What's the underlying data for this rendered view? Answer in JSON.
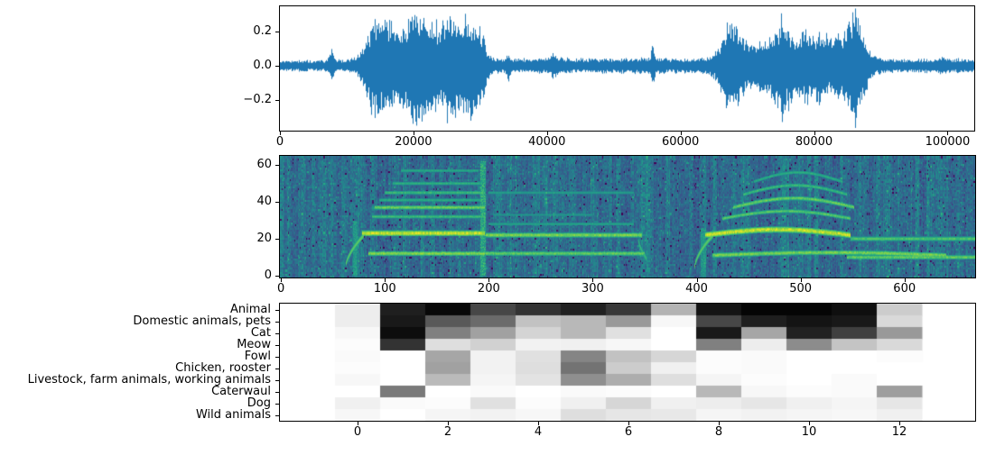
{
  "figure": {
    "background": "#ffffff",
    "frame_color": "#000000",
    "text_color": "#000000"
  },
  "chart_data": [
    {
      "id": "waveform",
      "type": "line",
      "title": "",
      "xlabel": "",
      "ylabel": "",
      "series_color": "#1f77b4",
      "xlim": [
        0,
        104000
      ],
      "ylim": [
        -0.379,
        0.347
      ],
      "xticks": [
        "0",
        "20000",
        "40000",
        "60000",
        "80000",
        "100000"
      ],
      "xtick_values": [
        0,
        20000,
        40000,
        60000,
        80000,
        100000
      ],
      "yticks": [
        "−0.2",
        "0.0",
        "0.2"
      ],
      "ytick_values": [
        -0.2,
        0.0,
        0.2
      ],
      "grid": false,
      "envelope": [
        [
          0,
          0.028
        ],
        [
          3000,
          0.032
        ],
        [
          6000,
          0.03
        ],
        [
          7000,
          0.033
        ],
        [
          7800,
          0.1
        ],
        [
          8400,
          0.033
        ],
        [
          10000,
          0.035
        ],
        [
          11500,
          0.05
        ],
        [
          12300,
          0.1
        ],
        [
          13000,
          0.17
        ],
        [
          14000,
          0.28
        ],
        [
          15000,
          0.24
        ],
        [
          16000,
          0.27
        ],
        [
          17000,
          0.22
        ],
        [
          18000,
          0.24
        ],
        [
          19000,
          0.26
        ],
        [
          20000,
          0.33
        ],
        [
          21000,
          0.28
        ],
        [
          22000,
          0.31
        ],
        [
          23000,
          0.26
        ],
        [
          24000,
          0.24
        ],
        [
          25000,
          0.27
        ],
        [
          26000,
          0.3
        ],
        [
          27000,
          0.26
        ],
        [
          28000,
          0.28
        ],
        [
          29000,
          0.31
        ],
        [
          29800,
          0.27
        ],
        [
          30500,
          0.18
        ],
        [
          31200,
          0.08
        ],
        [
          32000,
          0.045
        ],
        [
          33800,
          0.04
        ],
        [
          34200,
          0.1
        ],
        [
          34700,
          0.04
        ],
        [
          36000,
          0.04
        ],
        [
          38000,
          0.042
        ],
        [
          40500,
          0.05
        ],
        [
          41000,
          0.08
        ],
        [
          41600,
          0.05
        ],
        [
          44000,
          0.04
        ],
        [
          47000,
          0.042
        ],
        [
          50000,
          0.04
        ],
        [
          53000,
          0.045
        ],
        [
          55400,
          0.05
        ],
        [
          55800,
          0.12
        ],
        [
          56300,
          0.05
        ],
        [
          58000,
          0.042
        ],
        [
          61000,
          0.04
        ],
        [
          64000,
          0.05
        ],
        [
          65500,
          0.09
        ],
        [
          66500,
          0.19
        ],
        [
          67300,
          0.26
        ],
        [
          68300,
          0.24
        ],
        [
          69300,
          0.17
        ],
        [
          70300,
          0.12
        ],
        [
          71300,
          0.14
        ],
        [
          72500,
          0.15
        ],
        [
          74000,
          0.18
        ],
        [
          75300,
          0.33
        ],
        [
          76000,
          0.24
        ],
        [
          76800,
          0.17
        ],
        [
          77800,
          0.18
        ],
        [
          78800,
          0.21
        ],
        [
          79800,
          0.18
        ],
        [
          80800,
          0.2
        ],
        [
          81800,
          0.18
        ],
        [
          82800,
          0.17
        ],
        [
          84000,
          0.19
        ],
        [
          85300,
          0.26
        ],
        [
          86000,
          0.33
        ],
        [
          86800,
          0.26
        ],
        [
          87600,
          0.16
        ],
        [
          88400,
          0.08
        ],
        [
          89500,
          0.05
        ],
        [
          91000,
          0.042
        ],
        [
          94000,
          0.038
        ],
        [
          96000,
          0.04
        ],
        [
          98500,
          0.04
        ],
        [
          99200,
          0.055
        ],
        [
          99800,
          0.04
        ],
        [
          102000,
          0.042
        ],
        [
          104000,
          0.04
        ]
      ]
    },
    {
      "id": "spectrogram",
      "type": "heatmap",
      "title": "",
      "colormap": "viridis",
      "xlim": [
        -1,
        668
      ],
      "ylim": [
        -1,
        65
      ],
      "xticks": [
        "0",
        "100",
        "200",
        "300",
        "400",
        "500",
        "600"
      ],
      "xtick_values": [
        0,
        100,
        200,
        300,
        400,
        500,
        600
      ],
      "yticks": [
        "0",
        "20",
        "40",
        "60"
      ],
      "ytick_values": [
        0,
        20,
        40,
        60
      ],
      "grid": false,
      "features": {
        "background_level": 0.37,
        "sweeps": [
          {
            "x0": 62,
            "x1": 80,
            "y0": 4,
            "y1": 22,
            "i": 0.62
          },
          {
            "x0": 398,
            "x1": 416,
            "y0": 4,
            "y1": 22,
            "i": 0.62
          },
          {
            "x0": 344,
            "x1": 352,
            "y0": 20,
            "y1": 9,
            "i": 0.5
          }
        ],
        "lines": [
          {
            "x0": 78,
            "x1": 196,
            "y": 23,
            "th": 1.7,
            "i": 1.0,
            "arc": 0
          },
          {
            "x0": 84,
            "x1": 196,
            "y": 12,
            "th": 1.4,
            "i": 0.8,
            "arc": 0
          },
          {
            "x0": 88,
            "x1": 196,
            "y": 32,
            "th": 1.0,
            "i": 0.6,
            "arc": 0
          },
          {
            "x0": 90,
            "x1": 196,
            "y": 37,
            "th": 1.2,
            "i": 0.76,
            "arc": 0
          },
          {
            "x0": 95,
            "x1": 193,
            "y": 41,
            "th": 0.9,
            "i": 0.5,
            "arc": 0
          },
          {
            "x0": 100,
            "x1": 196,
            "y": 45,
            "th": 1.0,
            "i": 0.58,
            "arc": 0
          },
          {
            "x0": 108,
            "x1": 193,
            "y": 50,
            "th": 0.9,
            "i": 0.52,
            "arc": 0
          },
          {
            "x0": 115,
            "x1": 190,
            "y": 57,
            "th": 0.9,
            "i": 0.46,
            "arc": 0
          },
          {
            "x0": 197,
            "x1": 347,
            "y": 22,
            "th": 1.4,
            "i": 0.8,
            "arc": 0
          },
          {
            "x0": 197,
            "x1": 350,
            "y": 12,
            "th": 1.3,
            "i": 0.72,
            "arc": 0
          },
          {
            "x0": 200,
            "x1": 340,
            "y": 28,
            "th": 0.8,
            "i": 0.42,
            "arc": 0
          },
          {
            "x0": 200,
            "x1": 340,
            "y": 45,
            "th": 0.8,
            "i": 0.38,
            "arc": 0
          },
          {
            "x0": 205,
            "x1": 300,
            "y": 33,
            "th": 0.7,
            "i": 0.33,
            "arc": 0
          },
          {
            "x0": 408,
            "x1": 548,
            "y": 22,
            "th": 1.8,
            "i": 1.0,
            "arc": 3
          },
          {
            "x0": 415,
            "x1": 640,
            "y": 11,
            "th": 1.4,
            "i": 0.78,
            "arc": 1.5
          },
          {
            "x0": 425,
            "x1": 548,
            "y": 31,
            "th": 1.1,
            "i": 0.68,
            "arc": 4
          },
          {
            "x0": 435,
            "x1": 552,
            "y": 37,
            "th": 1.2,
            "i": 0.74,
            "arc": 5
          },
          {
            "x0": 445,
            "x1": 545,
            "y": 44,
            "th": 1.0,
            "i": 0.58,
            "arc": 5
          },
          {
            "x0": 455,
            "x1": 540,
            "y": 51,
            "th": 0.9,
            "i": 0.5,
            "arc": 5
          },
          {
            "x0": 548,
            "x1": 668,
            "y": 20,
            "th": 1.3,
            "i": 0.66,
            "arc": 0
          },
          {
            "x0": 545,
            "x1": 668,
            "y": 10,
            "th": 1.3,
            "i": 0.72,
            "arc": 0
          }
        ],
        "transients": [
          {
            "x0": 192,
            "x1": 197,
            "y0": 0,
            "y1": 62,
            "i": 0.5
          },
          {
            "x0": 69,
            "x1": 74,
            "y0": 0,
            "y1": 30,
            "i": 0.38
          },
          {
            "x0": 404,
            "x1": 409,
            "y0": 0,
            "y1": 26,
            "i": 0.36
          }
        ]
      }
    },
    {
      "id": "class_scores",
      "type": "heatmap",
      "title": "",
      "colormap": "gray_r",
      "xlim": [
        -1.72,
        13.68
      ],
      "cell_extent": [
        -0.5,
        12.5
      ],
      "frames": 13,
      "xticks": [
        "0",
        "2",
        "4",
        "6",
        "8",
        "10",
        "12"
      ],
      "xtick_values": [
        0,
        2,
        4,
        6,
        8,
        10,
        12
      ],
      "grid": false,
      "categories": [
        "Animal",
        "Domestic animals, pets",
        "Cat",
        "Meow",
        "Fowl",
        "Chicken, rooster",
        "Livestock, farm animals, working animals",
        "Caterwaul",
        "Dog",
        "Wild animals"
      ],
      "values": [
        [
          0.07,
          0.88,
          0.97,
          0.72,
          0.8,
          0.87,
          0.78,
          0.3,
          0.92,
          0.98,
          0.98,
          0.94,
          0.2
        ],
        [
          0.07,
          0.9,
          0.65,
          0.58,
          0.24,
          0.28,
          0.4,
          0.03,
          0.72,
          0.88,
          0.92,
          0.9,
          0.15
        ],
        [
          0.03,
          0.95,
          0.5,
          0.37,
          0.17,
          0.28,
          0.12,
          0.0,
          0.9,
          0.35,
          0.87,
          0.75,
          0.4
        ],
        [
          0.01,
          0.8,
          0.13,
          0.18,
          0.05,
          0.06,
          0.03,
          0.0,
          0.5,
          0.07,
          0.45,
          0.23,
          0.15
        ],
        [
          0.02,
          0.0,
          0.35,
          0.05,
          0.12,
          0.48,
          0.24,
          0.16,
          0.01,
          0.02,
          0.0,
          0.0,
          0.01
        ],
        [
          0.01,
          0.0,
          0.37,
          0.05,
          0.13,
          0.55,
          0.2,
          0.06,
          0.01,
          0.02,
          0.0,
          0.0,
          0.0
        ],
        [
          0.03,
          0.0,
          0.27,
          0.04,
          0.11,
          0.44,
          0.32,
          0.13,
          0.04,
          0.01,
          0.0,
          0.02,
          0.0
        ],
        [
          0.0,
          0.52,
          0.0,
          0.02,
          0.0,
          0.02,
          0.01,
          0.0,
          0.28,
          0.03,
          0.01,
          0.02,
          0.38
        ],
        [
          0.06,
          0.02,
          0.01,
          0.12,
          0.01,
          0.06,
          0.16,
          0.06,
          0.07,
          0.1,
          0.06,
          0.04,
          0.1
        ],
        [
          0.03,
          0.0,
          0.04,
          0.05,
          0.03,
          0.13,
          0.1,
          0.09,
          0.04,
          0.05,
          0.04,
          0.03,
          0.06
        ]
      ]
    }
  ]
}
